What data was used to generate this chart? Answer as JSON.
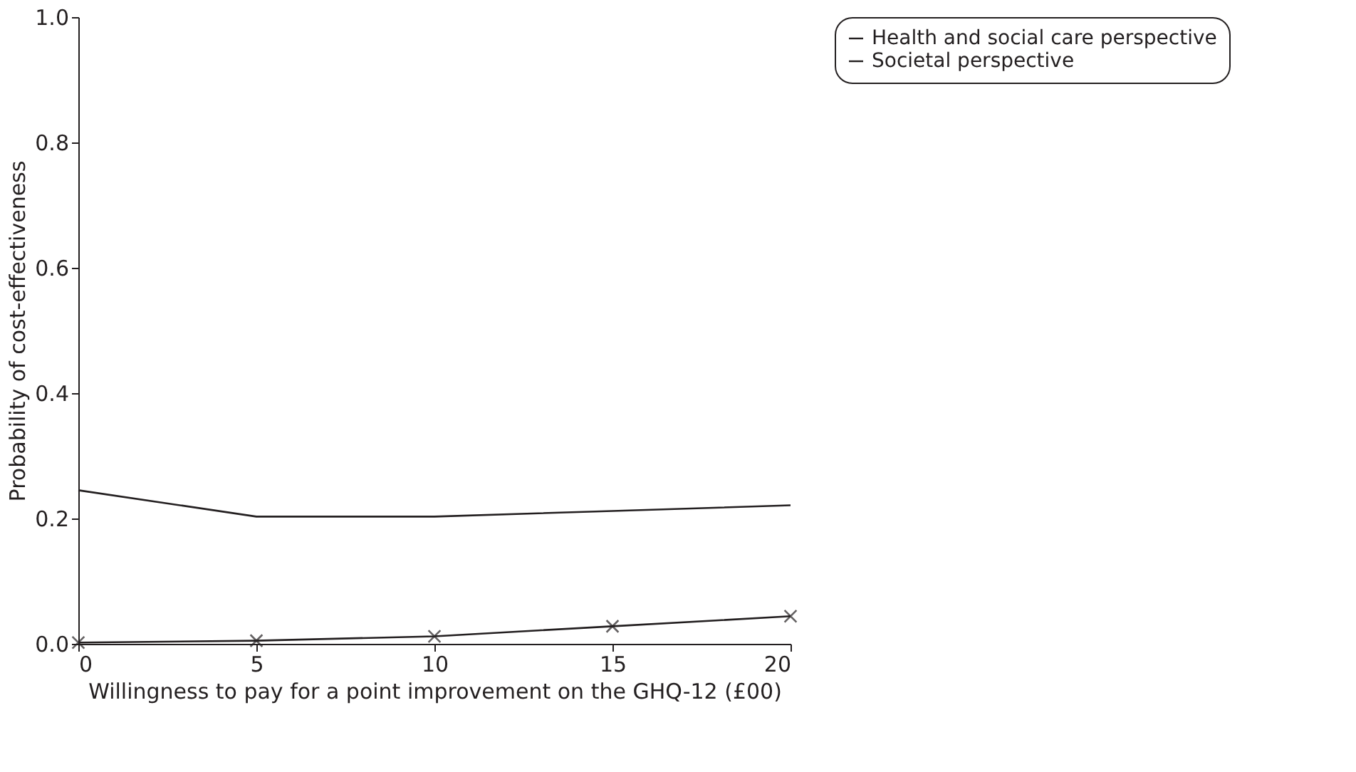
{
  "chart_data": {
    "type": "line",
    "xlabel": "Willingness to pay for a point improvement on the GHQ-12 (£00)",
    "ylabel": "Probability of cost-effectiveness",
    "x": [
      0,
      5,
      10,
      15,
      20
    ],
    "series": [
      {
        "name": "Health and social care perspective",
        "color": "#231f20",
        "values": [
          0.245,
          0.203,
          0.203,
          0.212,
          0.221
        ],
        "marker": "none",
        "line_style": "solid"
      },
      {
        "name": "Societal perspective",
        "color": "#231f20",
        "values": [
          0.002,
          0.005,
          0.012,
          0.028,
          0.044
        ],
        "marker": "cross",
        "line_style": "solid"
      }
    ],
    "xlim": [
      0,
      20
    ],
    "xticks": [
      0,
      5,
      10,
      15,
      20
    ],
    "ylim": [
      0,
      1.0
    ],
    "yticks": [
      {
        "value": 0,
        "label": "0.0"
      },
      0.2,
      0.4,
      0.6,
      0.8,
      {
        "value": 1,
        "label": "1.0"
      }
    ],
    "grid": false,
    "legend": "right"
  }
}
